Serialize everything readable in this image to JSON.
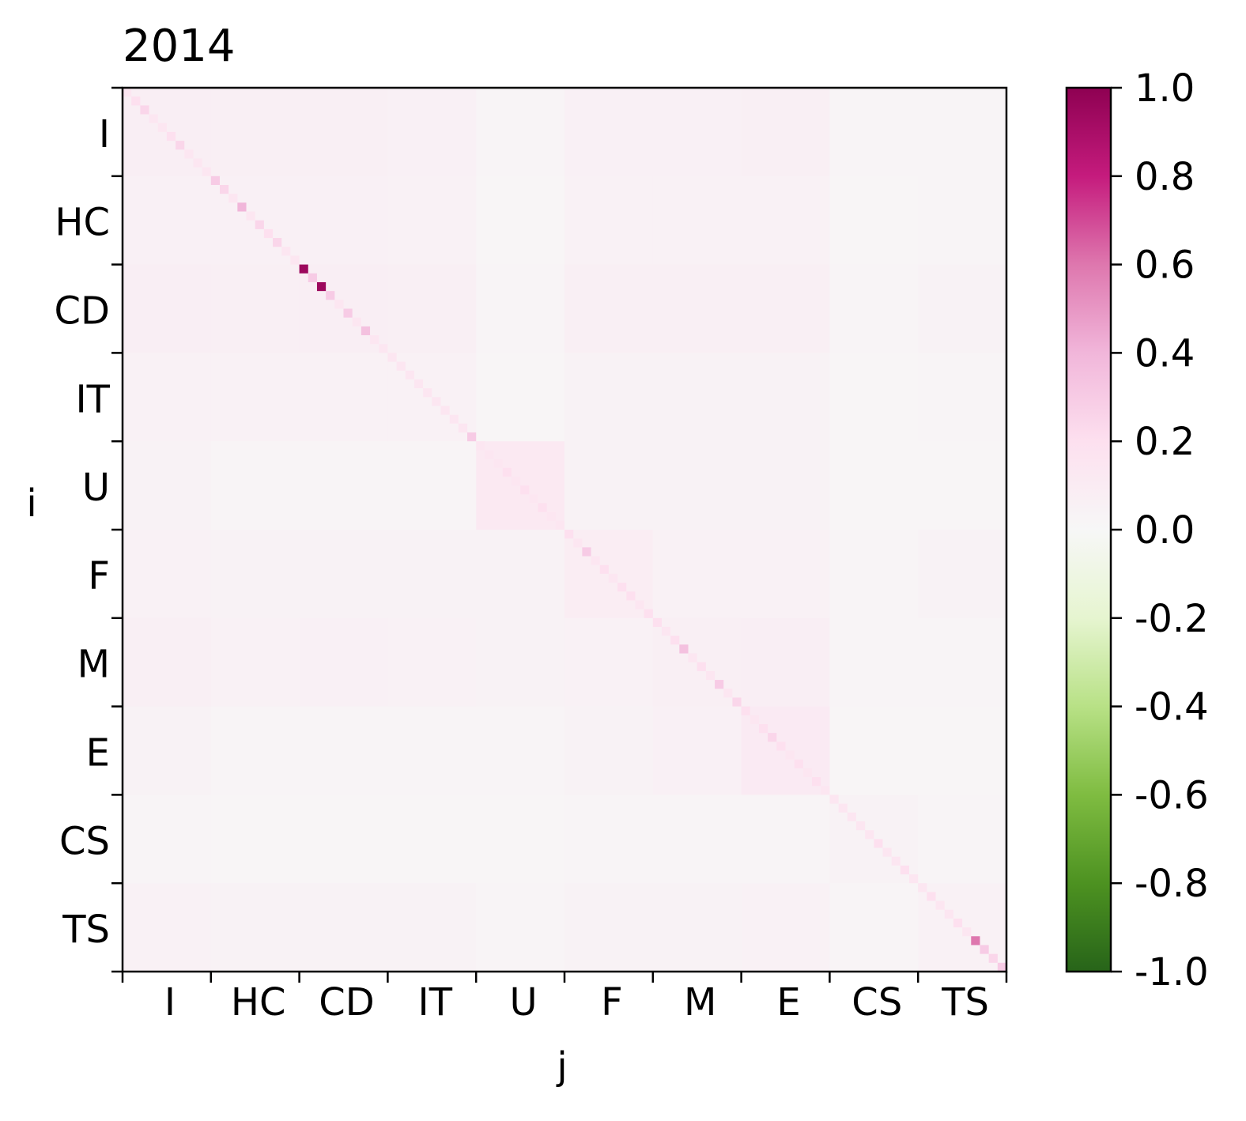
{
  "chart_data": {
    "type": "heatmap",
    "title": "2014",
    "x_label": "j",
    "y_label": "i",
    "categories": [
      "I",
      "HC",
      "CD",
      "IT",
      "U",
      "F",
      "M",
      "E",
      "CS",
      "TS"
    ],
    "blocks": [
      [
        0.08,
        0.07,
        0.07,
        0.06,
        0.03,
        0.06,
        0.06,
        0.07,
        0.03,
        0.03
      ],
      [
        0.06,
        0.06,
        0.06,
        0.05,
        0.02,
        0.05,
        0.05,
        0.05,
        0.02,
        0.03
      ],
      [
        0.08,
        0.07,
        0.08,
        0.07,
        0.03,
        0.07,
        0.07,
        0.07,
        0.03,
        0.04
      ],
      [
        0.05,
        0.05,
        0.05,
        0.05,
        0.02,
        0.04,
        0.04,
        0.04,
        0.02,
        0.03
      ],
      [
        0.04,
        0.03,
        0.03,
        0.03,
        0.12,
        0.04,
        0.04,
        0.04,
        0.02,
        0.02
      ],
      [
        0.05,
        0.04,
        0.04,
        0.04,
        0.04,
        0.09,
        0.05,
        0.05,
        0.03,
        0.04
      ],
      [
        0.07,
        0.05,
        0.06,
        0.05,
        0.04,
        0.05,
        0.07,
        0.08,
        0.03,
        0.03
      ],
      [
        0.04,
        0.03,
        0.03,
        0.03,
        0.03,
        0.04,
        0.06,
        0.11,
        0.02,
        0.02
      ],
      [
        0.03,
        0.02,
        0.02,
        0.02,
        0.02,
        0.03,
        0.03,
        0.03,
        0.04,
        0.03
      ],
      [
        0.05,
        0.04,
        0.04,
        0.04,
        0.03,
        0.04,
        0.04,
        0.05,
        0.03,
        0.05
      ]
    ],
    "diagonal": [
      [
        0.15,
        0.2,
        0.25,
        0.15,
        0.15,
        0.2,
        0.25,
        0.15,
        0.15,
        0.15
      ],
      [
        0.3,
        0.25,
        0.15,
        0.4,
        0.15,
        0.25,
        0.2,
        0.25,
        0.15,
        0.15
      ],
      [
        0.95,
        0.3,
        0.95,
        0.3,
        0.15,
        0.3,
        0.15,
        0.35,
        0.15,
        0.15
      ],
      [
        0.15,
        0.15,
        0.15,
        0.15,
        0.15,
        0.15,
        0.15,
        0.15,
        0.15,
        0.3
      ],
      [
        0.15,
        0.15,
        0.15,
        0.2,
        0.15,
        0.2,
        0.15,
        0.2,
        0.15,
        0.15
      ],
      [
        0.2,
        0.15,
        0.3,
        0.15,
        0.2,
        0.15,
        0.2,
        0.2,
        0.15,
        0.2
      ],
      [
        0.2,
        0.15,
        0.2,
        0.35,
        0.15,
        0.2,
        0.15,
        0.3,
        0.15,
        0.25
      ],
      [
        0.2,
        0.15,
        0.2,
        0.25,
        0.2,
        0.15,
        0.2,
        0.15,
        0.2,
        0.15
      ],
      [
        0.15,
        0.15,
        0.15,
        0.15,
        0.15,
        0.2,
        0.15,
        0.15,
        0.2,
        0.15
      ],
      [
        0.15,
        0.2,
        0.15,
        0.15,
        0.2,
        0.15,
        0.6,
        0.3,
        0.25,
        0.3
      ]
    ],
    "colormap": [
      "#276419",
      "#4d9221",
      "#7fbc41",
      "#b8e186",
      "#e6f5d0",
      "#f7f7f7",
      "#fde0ef",
      "#f1b6da",
      "#de77ae",
      "#c51b7d",
      "#8e0152"
    ],
    "clim": [
      -1,
      1
    ],
    "cticks": [
      {
        "value": -1,
        "label": "-1.0"
      },
      {
        "value": -0.8,
        "label": "-0.8"
      },
      {
        "value": -0.6,
        "label": "-0.6"
      },
      {
        "value": -0.4,
        "label": "-0.4"
      },
      {
        "value": -0.2,
        "label": "-0.2"
      },
      {
        "value": 0,
        "label": "0.0"
      },
      {
        "value": 0.2,
        "label": "0.2"
      },
      {
        "value": 0.4,
        "label": "0.4"
      },
      {
        "value": 0.6,
        "label": "0.6"
      },
      {
        "value": 0.8,
        "label": "0.8"
      },
      {
        "value": 1,
        "label": "1.0"
      }
    ]
  }
}
